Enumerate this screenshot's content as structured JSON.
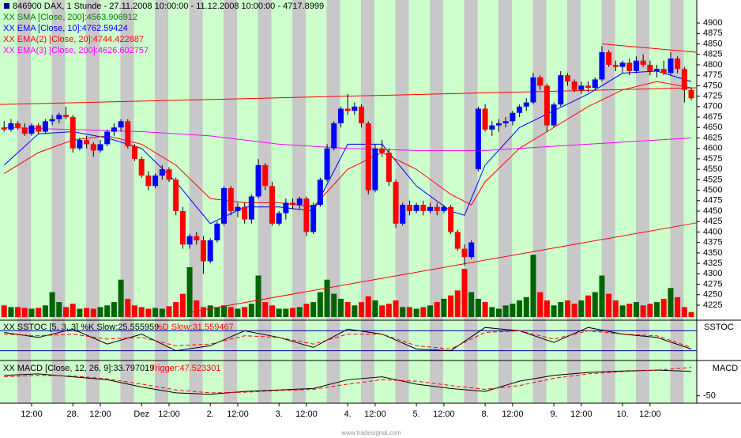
{
  "chart_data": {
    "type": "candlestick",
    "title": "846900 DAX, 1 Stunde - 27.11.2008 10:00:00 - 11.12.2008 10:00:00 - 4717.8999",
    "up_color": "#0000ff",
    "down_color": "#ff0000",
    "xlim": [
      -0.6,
      100.8
    ],
    "xticks": [
      {
        "value": 4,
        "label": "12:00"
      },
      {
        "value": 10,
        "label": "28."
      },
      {
        "value": 14,
        "label": "12:00"
      },
      {
        "value": 20,
        "label": "Dez"
      },
      {
        "value": 24,
        "label": "12:00"
      },
      {
        "value": 30,
        "label": "2."
      },
      {
        "value": 34,
        "label": "12:00"
      },
      {
        "value": 40,
        "label": "3."
      },
      {
        "value": 44,
        "label": "12:00"
      },
      {
        "value": 50,
        "label": "4."
      },
      {
        "value": 54,
        "label": "12:00"
      },
      {
        "value": 60,
        "label": "5."
      },
      {
        "value": 64,
        "label": "12:00"
      },
      {
        "value": 70,
        "label": "8."
      },
      {
        "value": 74,
        "label": "12:00"
      },
      {
        "value": 80,
        "label": "9."
      },
      {
        "value": 84,
        "label": "12:00"
      },
      {
        "value": 90,
        "label": "10."
      },
      {
        "value": 94,
        "label": "12:00"
      }
    ],
    "ylim": [
      4189,
      4955
    ],
    "yticks": [
      4900,
      4875,
      4850,
      4825,
      4800,
      4775,
      4750,
      4725,
      4700,
      4675,
      4650,
      4625,
      4600,
      4575,
      4550,
      4525,
      4500,
      4475,
      4450,
      4425,
      4400,
      4375,
      4350,
      4325,
      4300,
      4275,
      4250,
      4225
    ],
    "candles": [
      [
        4650,
        4665,
        4640,
        4645
      ],
      [
        4645,
        4670,
        4640,
        4660
      ],
      [
        4660,
        4665,
        4645,
        4650
      ],
      [
        4650,
        4660,
        4630,
        4635
      ],
      [
        4635,
        4660,
        4630,
        4655
      ],
      [
        4655,
        4660,
        4635,
        4640
      ],
      [
        4640,
        4670,
        4635,
        4665
      ],
      [
        4665,
        4680,
        4655,
        4670
      ],
      [
        4670,
        4685,
        4660,
        4680
      ],
      [
        4680,
        4700,
        4670,
        4675
      ],
      [
        4675,
        4680,
        4590,
        4600
      ],
      [
        4600,
        4625,
        4595,
        4620
      ],
      [
        4620,
        4630,
        4600,
        4610
      ],
      [
        4610,
        4615,
        4580,
        4595
      ],
      [
        4595,
        4620,
        4590,
        4610
      ],
      [
        4610,
        4645,
        4605,
        4640
      ],
      [
        4640,
        4660,
        4630,
        4650
      ],
      [
        4650,
        4670,
        4640,
        4665
      ],
      [
        4665,
        4670,
        4600,
        4605
      ],
      [
        4605,
        4610,
        4570,
        4575
      ],
      [
        4575,
        4580,
        4530,
        4535
      ],
      [
        4535,
        4545,
        4500,
        4510
      ],
      [
        4510,
        4540,
        4505,
        4535
      ],
      [
        4535,
        4560,
        4525,
        4550
      ],
      [
        4550,
        4555,
        4520,
        4525
      ],
      [
        4525,
        4530,
        4440,
        4450
      ],
      [
        4450,
        4460,
        4360,
        4370
      ],
      [
        4370,
        4395,
        4360,
        4390
      ],
      [
        4390,
        4400,
        4370,
        4380
      ],
      [
        4380,
        4390,
        4300,
        4330
      ],
      [
        4330,
        4385,
        4325,
        4380
      ],
      [
        4380,
        4425,
        4375,
        4420
      ],
      [
        4420,
        4510,
        4415,
        4505
      ],
      [
        4505,
        4510,
        4440,
        4450
      ],
      [
        4450,
        4470,
        4435,
        4460
      ],
      [
        4460,
        4470,
        4420,
        4430
      ],
      [
        4430,
        4490,
        4420,
        4485
      ],
      [
        4485,
        4575,
        4480,
        4560
      ],
      [
        4560,
        4565,
        4500,
        4510
      ],
      [
        4510,
        4520,
        4415,
        4420
      ],
      [
        4420,
        4450,
        4415,
        4445
      ],
      [
        4445,
        4480,
        4430,
        4470
      ],
      [
        4470,
        4480,
        4455,
        4465
      ],
      [
        4465,
        4485,
        4455,
        4480
      ],
      [
        4480,
        4485,
        4390,
        4400
      ],
      [
        4400,
        4470,
        4395,
        4465
      ],
      [
        4465,
        4530,
        4460,
        4525
      ],
      [
        4525,
        4610,
        4520,
        4600
      ],
      [
        4600,
        4665,
        4595,
        4660
      ],
      [
        4660,
        4700,
        4650,
        4695
      ],
      [
        4695,
        4730,
        4680,
        4690
      ],
      [
        4690,
        4710,
        4680,
        4700
      ],
      [
        4700,
        4705,
        4650,
        4660
      ],
      [
        4660,
        4665,
        4490,
        4500
      ],
      [
        4500,
        4610,
        4495,
        4600
      ],
      [
        4600,
        4620,
        4580,
        4590
      ],
      [
        4590,
        4600,
        4510,
        4520
      ],
      [
        4520,
        4525,
        4410,
        4420
      ],
      [
        4420,
        4470,
        4415,
        4465
      ],
      [
        4465,
        4475,
        4440,
        4450
      ],
      [
        4450,
        4470,
        4445,
        4465
      ],
      [
        4465,
        4475,
        4440,
        4450
      ],
      [
        4450,
        4470,
        4445,
        4460
      ],
      [
        4460,
        4470,
        4440,
        4450
      ],
      [
        4450,
        4465,
        4445,
        4460
      ],
      [
        4460,
        4465,
        4395,
        4400
      ],
      [
        4400,
        4405,
        4355,
        4360
      ],
      [
        4360,
        4370,
        4320,
        4340
      ],
      [
        4340,
        4380,
        4335,
        4375
      ],
      [
        4550,
        4700,
        4545,
        4695
      ],
      [
        4695,
        4705,
        4640,
        4645
      ],
      [
        4645,
        4665,
        4630,
        4655
      ],
      [
        4655,
        4670,
        4640,
        4660
      ],
      [
        4660,
        4675,
        4650,
        4665
      ],
      [
        4665,
        4690,
        4655,
        4685
      ],
      [
        4685,
        4705,
        4675,
        4700
      ],
      [
        4700,
        4720,
        4690,
        4710
      ],
      [
        4710,
        4780,
        4705,
        4770
      ],
      [
        4770,
        4775,
        4740,
        4750
      ],
      [
        4750,
        4755,
        4640,
        4655
      ],
      [
        4655,
        4710,
        4650,
        4705
      ],
      [
        4705,
        4785,
        4700,
        4775
      ],
      [
        4775,
        4780,
        4750,
        4760
      ],
      [
        4760,
        4765,
        4735,
        4740
      ],
      [
        4740,
        4760,
        4730,
        4750
      ],
      [
        4750,
        4760,
        4735,
        4745
      ],
      [
        4745,
        4770,
        4740,
        4765
      ],
      [
        4765,
        4845,
        4760,
        4830
      ],
      [
        4830,
        4835,
        4795,
        4800
      ],
      [
        4800,
        4810,
        4785,
        4795
      ],
      [
        4795,
        4810,
        4780,
        4805
      ],
      [
        4805,
        4815,
        4775,
        4785
      ],
      [
        4785,
        4820,
        4780,
        4810
      ],
      [
        4810,
        4825,
        4795,
        4800
      ],
      [
        4800,
        4810,
        4775,
        4785
      ],
      [
        4785,
        4800,
        4770,
        4790
      ],
      [
        4790,
        4810,
        4775,
        4780
      ],
      [
        4780,
        4830,
        4775,
        4815
      ],
      [
        4815,
        4820,
        4780,
        4790
      ],
      [
        4790,
        4795,
        4710,
        4740
      ],
      [
        4740,
        4745,
        4715,
        4720
      ]
    ],
    "series": [
      {
        "name": "XX SMA [Close, 200]:4563.906912",
        "color": "#008000"
      },
      {
        "name": "XX EMA [Close, 10]:4762.59424",
        "color": "#0000ff",
        "x": [
          0,
          5,
          10,
          15,
          20,
          25,
          30,
          35,
          40,
          45,
          50,
          55,
          60,
          65,
          67,
          70,
          75,
          80,
          85,
          90,
          95,
          100
        ],
        "values": [
          4560,
          4635,
          4640,
          4625,
          4600,
          4520,
          4420,
          4460,
          4460,
          4450,
          4610,
          4610,
          4510,
          4450,
          4440,
          4560,
          4650,
          4690,
          4730,
          4780,
          4785,
          4760
        ]
      },
      {
        "name": "XX EMA(2) [Close, 20]:4744.422887",
        "color": "#ff0000",
        "x": [
          0,
          5,
          10,
          15,
          20,
          25,
          30,
          35,
          40,
          45,
          50,
          55,
          60,
          65,
          68,
          70,
          75,
          80,
          85,
          90,
          95,
          100
        ],
        "values": [
          4540,
          4590,
          4620,
          4630,
          4610,
          4560,
          4480,
          4470,
          4470,
          4460,
          4550,
          4590,
          4550,
          4490,
          4465,
          4520,
          4600,
          4650,
          4700,
          4740,
          4760,
          4745
        ]
      },
      {
        "name": "XX EMA(3) [Close, 200]:4626.602757",
        "color": "#ff00ff",
        "x": [
          0,
          10,
          20,
          30,
          40,
          50,
          60,
          70,
          80,
          90,
          100
        ],
        "values": [
          4650,
          4645,
          4640,
          4630,
          4610,
          4600,
          4595,
          4595,
          4605,
          4615,
          4625
        ]
      }
    ],
    "trendlines": [
      {
        "color": "#ff0000",
        "x": [
          -0.6,
          100.8
        ],
        "values": [
          4705,
          4745
        ]
      },
      {
        "color": "#ff0000",
        "x": [
          27,
          100.8
        ],
        "values": [
          4208,
          4422
        ]
      },
      {
        "color": "#ff0000",
        "x": [
          87,
          100.8
        ],
        "values": [
          4850,
          4830
        ]
      }
    ],
    "volume": {
      "up_color": "#006400",
      "down_color": "#ff0000",
      "ylim": [
        0,
        100
      ],
      "values": [
        14,
        12,
        12,
        11,
        10,
        11,
        14,
        30,
        18,
        12,
        16,
        10,
        11,
        10,
        12,
        14,
        18,
        45,
        22,
        14,
        12,
        10,
        11,
        10,
        13,
        18,
        28,
        60,
        20,
        12,
        14,
        12,
        14,
        12,
        10,
        12,
        16,
        50,
        18,
        14,
        10,
        10,
        11,
        12,
        16,
        18,
        30,
        45,
        28,
        22,
        18,
        14,
        18,
        25,
        20,
        14,
        16,
        20,
        12,
        12,
        10,
        12,
        14,
        18,
        22,
        26,
        32,
        58,
        30,
        22,
        18,
        12,
        10,
        14,
        16,
        20,
        24,
        75,
        30,
        20,
        14,
        18,
        20,
        16,
        20,
        26,
        30,
        50,
        28,
        20,
        14,
        16,
        18,
        14,
        16,
        18,
        22,
        35,
        24,
        12,
        6
      ]
    },
    "sstoc": {
      "label": "XX SSTOC [5, 3, 3] %K Slow:25.555959",
      "label2": "%D Slow:31.559467",
      "title": "SSTOC",
      "ylim": [
        0,
        100
      ],
      "levels": [
        80,
        20
      ],
      "x": [
        0,
        5,
        10,
        15,
        20,
        25,
        30,
        35,
        40,
        45,
        50,
        55,
        60,
        65,
        70,
        75,
        80,
        85,
        90,
        95,
        100
      ],
      "k": [
        75,
        60,
        85,
        40,
        70,
        20,
        35,
        80,
        60,
        30,
        85,
        70,
        25,
        20,
        90,
        80,
        45,
        90,
        70,
        60,
        25
      ],
      "d": [
        70,
        65,
        70,
        55,
        60,
        35,
        40,
        65,
        60,
        40,
        70,
        70,
        35,
        25,
        75,
        80,
        55,
        80,
        70,
        65,
        30
      ]
    },
    "macd": {
      "label": "XX MACD [Close, 12, 26, 9]:33.797019",
      "label2": "Trigger:47.523301",
      "title": "MACD",
      "ylim": [
        -70,
        60
      ],
      "yticks": [
        -50
      ],
      "x": [
        0,
        5,
        10,
        15,
        20,
        25,
        30,
        35,
        40,
        45,
        50,
        55,
        60,
        65,
        70,
        75,
        80,
        85,
        90,
        95,
        100
      ],
      "macd": [
        20,
        25,
        15,
        5,
        -20,
        -40,
        -45,
        -35,
        -30,
        -25,
        5,
        15,
        -10,
        -25,
        -35,
        0,
        20,
        30,
        35,
        38,
        34
      ],
      "trigger": [
        15,
        20,
        18,
        8,
        -10,
        -30,
        -40,
        -38,
        -32,
        -28,
        -10,
        5,
        0,
        -15,
        -28,
        -15,
        10,
        25,
        33,
        38,
        47
      ]
    },
    "watermark": "www.tradesignal.com"
  }
}
